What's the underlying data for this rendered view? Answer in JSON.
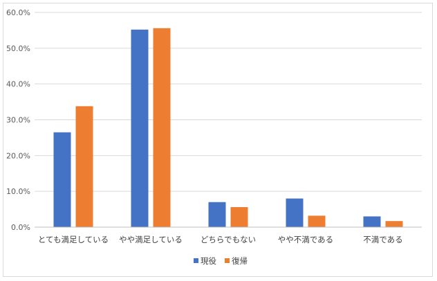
{
  "chart_data": {
    "type": "bar",
    "categories": [
      "とても満足している",
      "やや満足している",
      "どちらでもない",
      "やや不満である",
      "不満である"
    ],
    "series": [
      {
        "name": "現役",
        "color": "#4472C4",
        "values": [
          26.5,
          55.2,
          7.0,
          8.0,
          3.0
        ]
      },
      {
        "name": "復帰",
        "color": "#ED7D31",
        "values": [
          33.8,
          55.6,
          5.6,
          3.2,
          1.7
        ]
      }
    ],
    "ylim": [
      0,
      60
    ],
    "yticks": [
      "0.0%",
      "10.0%",
      "20.0%",
      "30.0%",
      "40.0%",
      "50.0%",
      "60.0%"
    ],
    "ytick_values": [
      0,
      10,
      20,
      30,
      40,
      50,
      60
    ],
    "grid": true,
    "legend_position": "bottom"
  }
}
